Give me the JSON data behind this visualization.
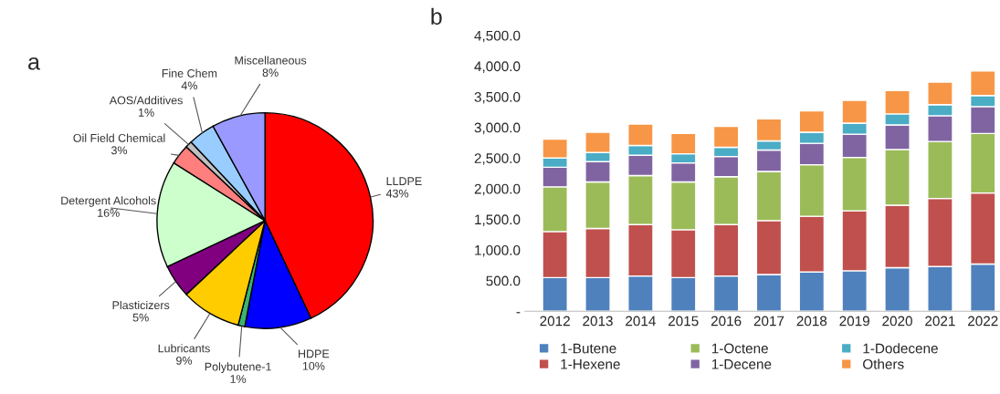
{
  "chart_data": [
    {
      "type": "pie",
      "title": "a",
      "categories": [
        "LLDPE",
        "HDPE",
        "Polybutene-1",
        "Lubricants",
        "Plasticizers",
        "Detergent Alcohols",
        "Oil Field Chemical",
        "AOS/Additives",
        "Fine Chem",
        "Miscellaneous"
      ],
      "values": [
        43,
        10,
        1,
        9,
        5,
        16,
        3,
        1,
        4,
        8
      ],
      "value_labels": [
        "43%",
        "10%",
        "1%",
        "9%",
        "5%",
        "16%",
        "3%",
        "1%",
        "4%",
        "8%"
      ],
      "colors": [
        "#ff0000",
        "#0000ff",
        "#3cb371",
        "#ffcc00",
        "#800080",
        "#ccffcc",
        "#ff7f7f",
        "#c0c0c0",
        "#99ccff",
        "#9999ff"
      ]
    },
    {
      "type": "bar",
      "title": "b",
      "stacked": true,
      "legend": "bottom",
      "grid": false,
      "categories": [
        "2012",
        "2013",
        "2014",
        "2015",
        "2016",
        "2017",
        "2018",
        "2019",
        "2020",
        "2021",
        "2022"
      ],
      "series": [
        {
          "name": "1-Butene",
          "color": "#4f81bd",
          "values": [
            550,
            550,
            575,
            550,
            575,
            600,
            640,
            660,
            710,
            730,
            770
          ]
        },
        {
          "name": "1-Hexene",
          "color": "#c0504d",
          "values": [
            750,
            800,
            840,
            780,
            840,
            880,
            910,
            980,
            1020,
            1110,
            1160
          ]
        },
        {
          "name": "1-Octene",
          "color": "#9bbb59",
          "values": [
            730,
            760,
            800,
            780,
            780,
            800,
            840,
            870,
            910,
            930,
            970
          ]
        },
        {
          "name": "1-Decene",
          "color": "#8064a2",
          "values": [
            320,
            330,
            330,
            310,
            330,
            350,
            350,
            380,
            400,
            420,
            440
          ]
        },
        {
          "name": "1-Dodecene",
          "color": "#4bacc6",
          "values": [
            150,
            150,
            160,
            150,
            150,
            150,
            180,
            180,
            180,
            180,
            180
          ]
        },
        {
          "name": "Others",
          "color": "#f79646",
          "values": [
            310,
            330,
            350,
            330,
            340,
            360,
            350,
            370,
            380,
            370,
            400
          ]
        }
      ],
      "ylim": [
        0,
        4500
      ],
      "yticks": [
        {
          "value": 0,
          "label": "-"
        },
        {
          "value": 500,
          "label": "500.0"
        },
        {
          "value": 1000,
          "label": "1,000.0"
        },
        {
          "value": 1500,
          "label": "1,500.0"
        },
        {
          "value": 2000,
          "label": "2,000.0"
        },
        {
          "value": 2500,
          "label": "2,500.0"
        },
        {
          "value": 3000,
          "label": "3,000.0"
        },
        {
          "value": 3500,
          "label": "3,500.0"
        },
        {
          "value": 4000,
          "label": "4,000.0"
        },
        {
          "value": 4500,
          "label": "4,500.0"
        }
      ]
    }
  ]
}
